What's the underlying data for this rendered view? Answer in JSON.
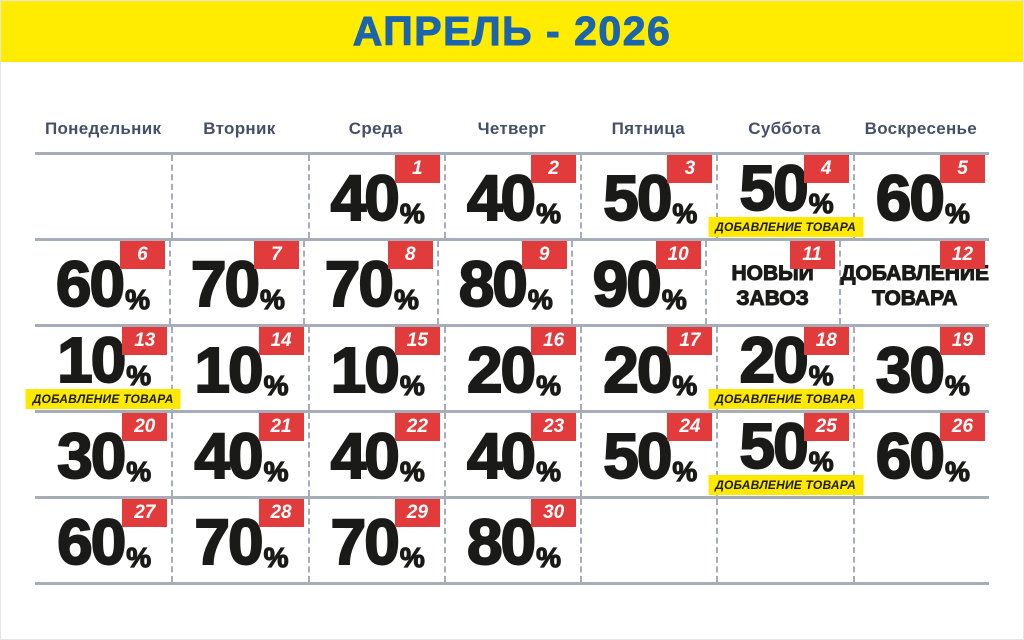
{
  "banner": {
    "title": "АПРЕЛЬ - 2026"
  },
  "weekdays": [
    "Понедельник",
    "Вторник",
    "Среда",
    "Четверг",
    "Пятница",
    "Суббота",
    "Воскресенье"
  ],
  "labels": {
    "percent": "%",
    "product_add": "ДОБАВЛЕНИЕ ТОВАРА"
  },
  "colors": {
    "banner_bg": "#FFEC00",
    "title_blue": "#1B64AE",
    "weekday_ink": "#44506A",
    "badge_red": "#E23B3C",
    "note_yellow": "#FFE900",
    "grid_gray": "#A6ACB8",
    "ink": "#1A1A18"
  },
  "calendar": {
    "rows": [
      [
        null,
        null,
        {
          "day": "1",
          "discount": "40"
        },
        {
          "day": "2",
          "discount": "40"
        },
        {
          "day": "3",
          "discount": "50"
        },
        {
          "day": "4",
          "discount": "50",
          "note": true
        },
        {
          "day": "5",
          "discount": "60"
        }
      ],
      [
        {
          "day": "6",
          "discount": "60"
        },
        {
          "day": "7",
          "discount": "70"
        },
        {
          "day": "8",
          "discount": "70"
        },
        {
          "day": "9",
          "discount": "80"
        },
        {
          "day": "10",
          "discount": "90"
        },
        {
          "day": "11",
          "text": [
            "НОВЫЙ",
            "ЗАВОЗ"
          ]
        },
        {
          "day": "12",
          "text": [
            "ДОБАВЛЕНИЕ",
            "ТОВАРА"
          ]
        }
      ],
      [
        {
          "day": "13",
          "discount": "10",
          "note": true
        },
        {
          "day": "14",
          "discount": "10"
        },
        {
          "day": "15",
          "discount": "10"
        },
        {
          "day": "16",
          "discount": "20"
        },
        {
          "day": "17",
          "discount": "20"
        },
        {
          "day": "18",
          "discount": "20",
          "note": true
        },
        {
          "day": "19",
          "discount": "30"
        }
      ],
      [
        {
          "day": "20",
          "discount": "30"
        },
        {
          "day": "21",
          "discount": "40"
        },
        {
          "day": "22",
          "discount": "40"
        },
        {
          "day": "23",
          "discount": "40"
        },
        {
          "day": "24",
          "discount": "50"
        },
        {
          "day": "25",
          "discount": "50",
          "note": true
        },
        {
          "day": "26",
          "discount": "60"
        }
      ],
      [
        {
          "day": "27",
          "discount": "60"
        },
        {
          "day": "28",
          "discount": "70"
        },
        {
          "day": "29",
          "discount": "70"
        },
        {
          "day": "30",
          "discount": "80"
        },
        null,
        null,
        null
      ]
    ]
  }
}
